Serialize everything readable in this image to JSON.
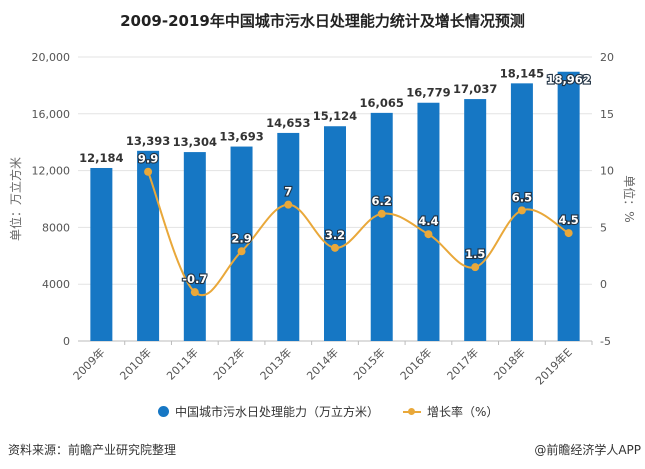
{
  "chart_data": {
    "type": "bar",
    "title": "2009-2019年中国城市污水日处理能力统计及增长情况预测",
    "categories": [
      "2009年",
      "2010年",
      "2011年",
      "2012年",
      "2013年",
      "2014年",
      "2015年",
      "2016年",
      "2017年",
      "2018年",
      "2019年E"
    ],
    "series": [
      {
        "name": "中国城市污水日处理能力（万立方米）",
        "type": "bar",
        "axis": "left",
        "color": "#1677c4",
        "values": [
          12184,
          13393,
          13304,
          13693,
          14653,
          15124,
          16065,
          16779,
          17037,
          18145,
          18962
        ],
        "labels": [
          "12,184",
          "13,393",
          "13,304",
          "13,693",
          "14,653",
          "15,124",
          "16,065",
          "16,779",
          "17,037",
          "18,145",
          "18,962"
        ]
      },
      {
        "name": "增长率（%）",
        "type": "line",
        "axis": "right",
        "color": "#e9a83a",
        "values": [
          null,
          9.9,
          -0.7,
          2.9,
          7,
          3.2,
          6.2,
          4.4,
          1.5,
          6.5,
          4.5
        ],
        "labels": [
          "",
          "9.9",
          "-0.7",
          "2.9",
          "7",
          "3.2",
          "6.2",
          "4.4",
          "1.5",
          "6.5",
          "4.5"
        ]
      }
    ],
    "ylabel": "单位：万立方米",
    "ylabel_right": "单位：%",
    "ylim": [
      0,
      20000
    ],
    "ylim_right": [
      -5,
      20
    ],
    "yticks": [
      "0",
      "4000",
      "8000",
      "12,000",
      "16,000",
      "20,000"
    ],
    "yticks_right": [
      "-5",
      "0",
      "5",
      "10",
      "15",
      "20"
    ],
    "grid": true,
    "legend": "bottom"
  },
  "footer": {
    "source": "资料来源：前瞻产业研究院整理",
    "credit": "@前瞻经济学人APP"
  },
  "watermark": "前瞻产业研究院"
}
